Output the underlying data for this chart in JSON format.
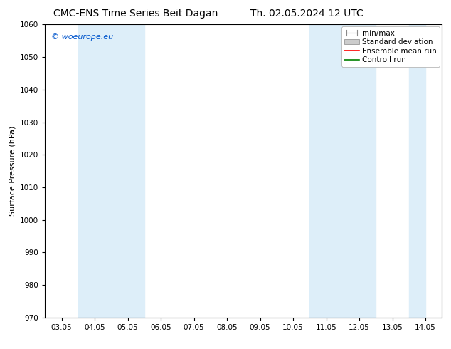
{
  "title_left": "CMC-ENS Time Series Beit Dagan",
  "title_right": "Th. 02.05.2024 12 UTC",
  "ylabel": "Surface Pressure (hPa)",
  "ylim": [
    970,
    1060
  ],
  "yticks": [
    970,
    980,
    990,
    1000,
    1010,
    1020,
    1030,
    1040,
    1050,
    1060
  ],
  "x_tick_labels": [
    "03.05",
    "04.05",
    "05.05",
    "06.05",
    "07.05",
    "08.05",
    "09.05",
    "10.05",
    "11.05",
    "12.05",
    "13.05",
    "14.05"
  ],
  "x_tick_positions": [
    0,
    1,
    2,
    3,
    4,
    5,
    6,
    7,
    8,
    9,
    10,
    11
  ],
  "shaded_bands": [
    {
      "xmin": 1,
      "xmax": 3,
      "color": "#ddeef9"
    },
    {
      "xmin": 8,
      "xmax": 10,
      "color": "#ddeef9"
    },
    {
      "xmin": 11,
      "xmax": 11.5,
      "color": "#ddeef9"
    }
  ],
  "watermark_text": "© woeurope.eu",
  "watermark_color": "#0055cc",
  "legend_labels": [
    "min/max",
    "Standard deviation",
    "Ensemble mean run",
    "Controll run"
  ],
  "legend_colors_line": [
    "#888888",
    "#bbbbbb",
    "red",
    "green"
  ],
  "background_color": "#ffffff",
  "plot_bg_color": "#ffffff",
  "font_size_title": 10,
  "font_size_axis": 8,
  "font_size_ticks": 7.5,
  "font_size_legend": 7.5,
  "font_size_watermark": 8
}
